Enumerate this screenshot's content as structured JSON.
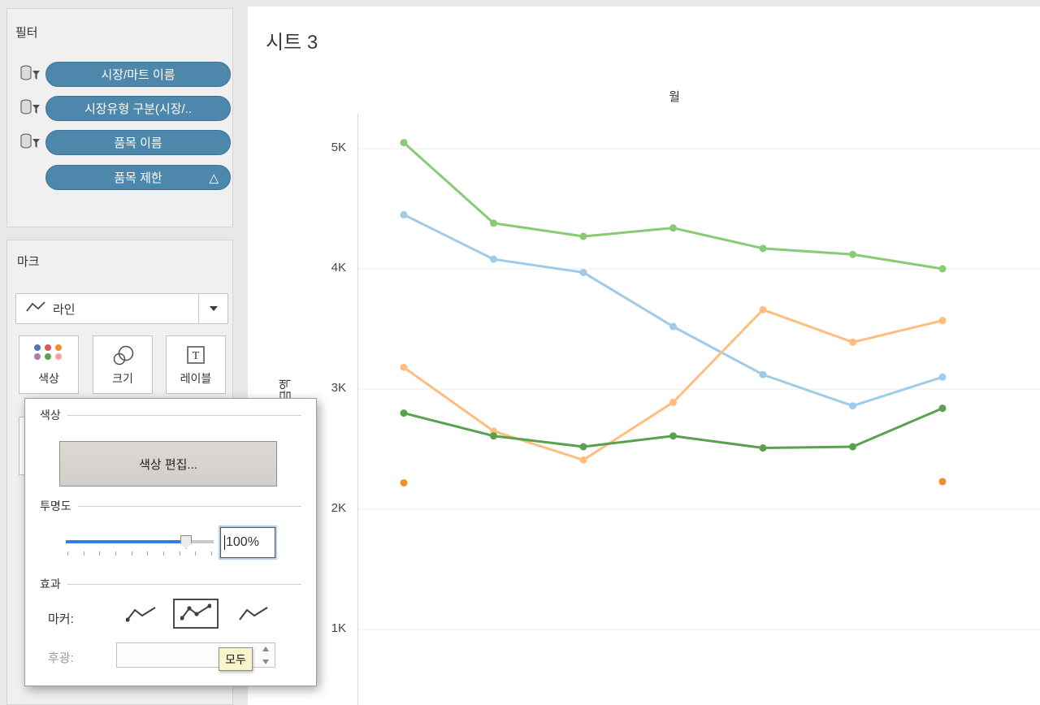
{
  "theme": {
    "filter_pill_color": "#4d87ab",
    "slider_fill_color": "#2f80e0",
    "tooltip_bg_color": "#faf4cb",
    "panel_bg_color": "#f0f0f0"
  },
  "filters_panel": {
    "title": "필터",
    "pills": [
      {
        "label": "시장/마트 이름"
      },
      {
        "label": "시장유형 구분(시장/.."
      },
      {
        "label": "품목 이름"
      },
      {
        "label": "품목 제한",
        "badge": "△"
      }
    ]
  },
  "marks_panel": {
    "title": "마크",
    "mark_type": "라인",
    "buttons": [
      {
        "label": "색상"
      },
      {
        "label": "크기"
      },
      {
        "label": "레이블"
      }
    ]
  },
  "color_dialog": {
    "section_color": "색상",
    "edit_colors_button": "색상 편집...",
    "section_opacity": "투명도",
    "opacity_value": "100%",
    "section_effects": "효과",
    "marker_label": "마커:",
    "halo_label": "후광:",
    "tooltip_all": "모두"
  },
  "sheet": {
    "title": "시트 3",
    "column_header": "월",
    "row_axis_label": "금액"
  },
  "chart_data": {
    "type": "line",
    "title": "시트 3",
    "xlabel": "월",
    "ylabel": "금액",
    "x": [
      1,
      2,
      3,
      4,
      5,
      6,
      7
    ],
    "ylim": [
      500,
      5300
    ],
    "yticks": [
      {
        "value": 1000,
        "label": "1K"
      },
      {
        "value": 2000,
        "label": "2K"
      },
      {
        "value": 3000,
        "label": "3K"
      },
      {
        "value": 4000,
        "label": "4K"
      },
      {
        "value": 5000,
        "label": "5K"
      }
    ],
    "grid": "horizontal",
    "legend_visible": false,
    "markers": true,
    "series": [
      {
        "name": "light-green-line",
        "color": "#89cb74",
        "render": "line",
        "values": [
          5050,
          4380,
          4270,
          4340,
          4170,
          4120,
          4000
        ]
      },
      {
        "name": "light-blue-line",
        "color": "#a0cbe8",
        "render": "line",
        "values": [
          4450,
          4080,
          3970,
          3520,
          3120,
          2860,
          3100
        ]
      },
      {
        "name": "light-orange-line",
        "color": "#ffbe7d",
        "render": "line",
        "values": [
          3180,
          2650,
          2410,
          2890,
          3660,
          3390,
          3570
        ]
      },
      {
        "name": "dark-green-line",
        "color": "#59a14f",
        "render": "line",
        "values": [
          2800,
          2610,
          2520,
          2610,
          2510,
          2520,
          2840
        ]
      },
      {
        "name": "orange-points",
        "color": "#f28e2b",
        "render": "points",
        "values": [
          2220,
          null,
          null,
          null,
          null,
          null,
          2230
        ]
      }
    ]
  }
}
